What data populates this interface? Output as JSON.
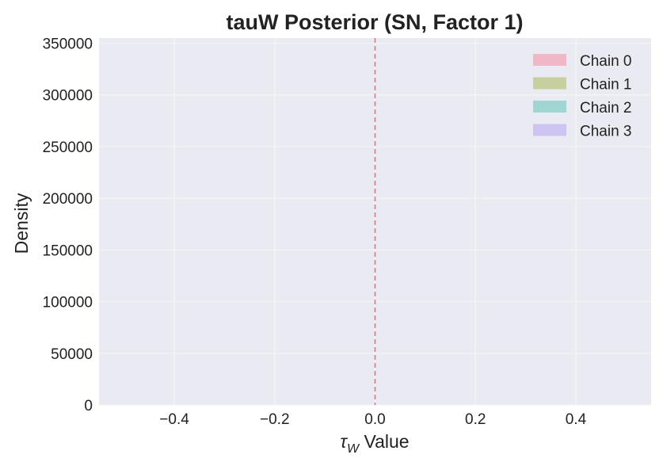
{
  "chart_data": {
    "type": "histogram",
    "title": "tauW Posterior (SN, Factor 1)",
    "xlabel_symbol": "τ",
    "xlabel_subscript": "W",
    "xlabel_rest": " Value",
    "ylabel": "Density",
    "xlim": [
      -0.55,
      0.55
    ],
    "ylim": [
      0,
      355000
    ],
    "x_ticks": [
      -0.4,
      -0.2,
      0.0,
      0.2,
      0.4
    ],
    "x_tick_labels": [
      "−0.4",
      "−0.2",
      "0.0",
      "0.2",
      "0.4"
    ],
    "y_ticks": [
      0,
      50000,
      100000,
      150000,
      200000,
      250000,
      300000,
      350000
    ],
    "y_tick_labels": [
      "0",
      "50000",
      "100000",
      "150000",
      "200000",
      "250000",
      "300000",
      "350000"
    ],
    "reference_line": {
      "x": 0.0,
      "style": "dashed",
      "color": "#f0707a"
    },
    "grid": true,
    "legend_placement": "top-right",
    "series": [
      {
        "name": "Chain 0",
        "color": "#f0b8c6"
      },
      {
        "name": "Chain 1",
        "color": "#c8cf9e"
      },
      {
        "name": "Chain 2",
        "color": "#a0d6d2"
      },
      {
        "name": "Chain 3",
        "color": "#cdc4f1"
      }
    ],
    "plot_background": "#eaeaf2",
    "grid_color": "#f4f4f8"
  }
}
